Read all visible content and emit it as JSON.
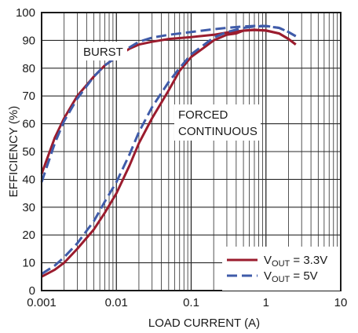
{
  "chart_data": {
    "type": "line",
    "xlabel": "LOAD CURRENT (A)",
    "ylabel": "EFFICIENCY (%)",
    "x_scale": "log",
    "xlim": [
      0.001,
      10
    ],
    "ylim": [
      0,
      100
    ],
    "x_ticks": [
      "0.001",
      "0.01",
      "0.1",
      "1",
      "10"
    ],
    "y_ticks": [
      "0",
      "10",
      "20",
      "30",
      "40",
      "50",
      "60",
      "70",
      "80",
      "90",
      "100"
    ],
    "grid": true,
    "legend_position": "bottom-right",
    "annotations": [
      {
        "lines": [
          "BURST"
        ]
      },
      {
        "lines": [
          "FORCED",
          "CONTINUOUS"
        ]
      }
    ],
    "series": [
      {
        "name_main": "V",
        "name_sub": "OUT",
        "name_rest": " = 3.3V",
        "color": "#9b1c2e",
        "style": "solid",
        "curves": [
          [
            [
              0.001,
              42
            ],
            [
              0.0015,
              55
            ],
            [
              0.002,
              62
            ],
            [
              0.003,
              70
            ],
            [
              0.005,
              77
            ],
            [
              0.007,
              81
            ],
            [
              0.01,
              84
            ],
            [
              0.015,
              87
            ],
            [
              0.02,
              88.5
            ],
            [
              0.03,
              89.5
            ],
            [
              0.05,
              90.5
            ],
            [
              0.1,
              91.2
            ],
            [
              0.2,
              92
            ],
            [
              0.3,
              92.8
            ],
            [
              0.5,
              93.5
            ],
            [
              0.7,
              93.7
            ],
            [
              1,
              93.5
            ],
            [
              1.5,
              92.5
            ],
            [
              2,
              90.5
            ],
            [
              2.5,
              88.5
            ]
          ],
          [
            [
              0.001,
              5
            ],
            [
              0.0015,
              7.5
            ],
            [
              0.002,
              10
            ],
            [
              0.003,
              15
            ],
            [
              0.005,
              22
            ],
            [
              0.007,
              28
            ],
            [
              0.01,
              35
            ],
            [
              0.015,
              45
            ],
            [
              0.02,
              53
            ],
            [
              0.03,
              62
            ],
            [
              0.05,
              72
            ],
            [
              0.07,
              79
            ],
            [
              0.1,
              84
            ],
            [
              0.15,
              87.5
            ],
            [
              0.2,
              90
            ],
            [
              0.3,
              92
            ],
            [
              0.4,
              92.5
            ],
            [
              0.5,
              93.5
            ],
            [
              0.7,
              93.8
            ],
            [
              1,
              93.6
            ],
            [
              1.5,
              92.5
            ],
            [
              2,
              90.5
            ],
            [
              2.5,
              88.5
            ]
          ]
        ]
      },
      {
        "name_main": "V",
        "name_sub": "OUT",
        "name_rest": " = 5V",
        "color": "#3f5ba9",
        "style": "dashed",
        "curves": [
          [
            [
              0.001,
              39
            ],
            [
              0.0015,
              53
            ],
            [
              0.002,
              61
            ],
            [
              0.003,
              69
            ],
            [
              0.005,
              77
            ],
            [
              0.007,
              81
            ],
            [
              0.01,
              84
            ],
            [
              0.015,
              87.5
            ],
            [
              0.02,
              89.5
            ],
            [
              0.03,
              91
            ],
            [
              0.05,
              92
            ],
            [
              0.1,
              93
            ],
            [
              0.2,
              94
            ],
            [
              0.3,
              94.5
            ],
            [
              0.5,
              95
            ],
            [
              0.7,
              95.2
            ],
            [
              1,
              95.2
            ],
            [
              1.5,
              94.5
            ],
            [
              2,
              93
            ],
            [
              2.5,
              91.5
            ]
          ],
          [
            [
              0.001,
              6
            ],
            [
              0.0015,
              9
            ],
            [
              0.002,
              12
            ],
            [
              0.003,
              17
            ],
            [
              0.005,
              25
            ],
            [
              0.007,
              32
            ],
            [
              0.01,
              39
            ],
            [
              0.015,
              49
            ],
            [
              0.02,
              57
            ],
            [
              0.03,
              66
            ],
            [
              0.05,
              75
            ],
            [
              0.07,
              80
            ],
            [
              0.1,
              85
            ],
            [
              0.15,
              88.5
            ],
            [
              0.2,
              91
            ],
            [
              0.3,
              93
            ],
            [
              0.5,
              94.5
            ],
            [
              0.7,
              95
            ],
            [
              1,
              95.1
            ],
            [
              1.5,
              94.5
            ],
            [
              2,
              93
            ],
            [
              2.5,
              91.5
            ]
          ]
        ]
      }
    ]
  }
}
